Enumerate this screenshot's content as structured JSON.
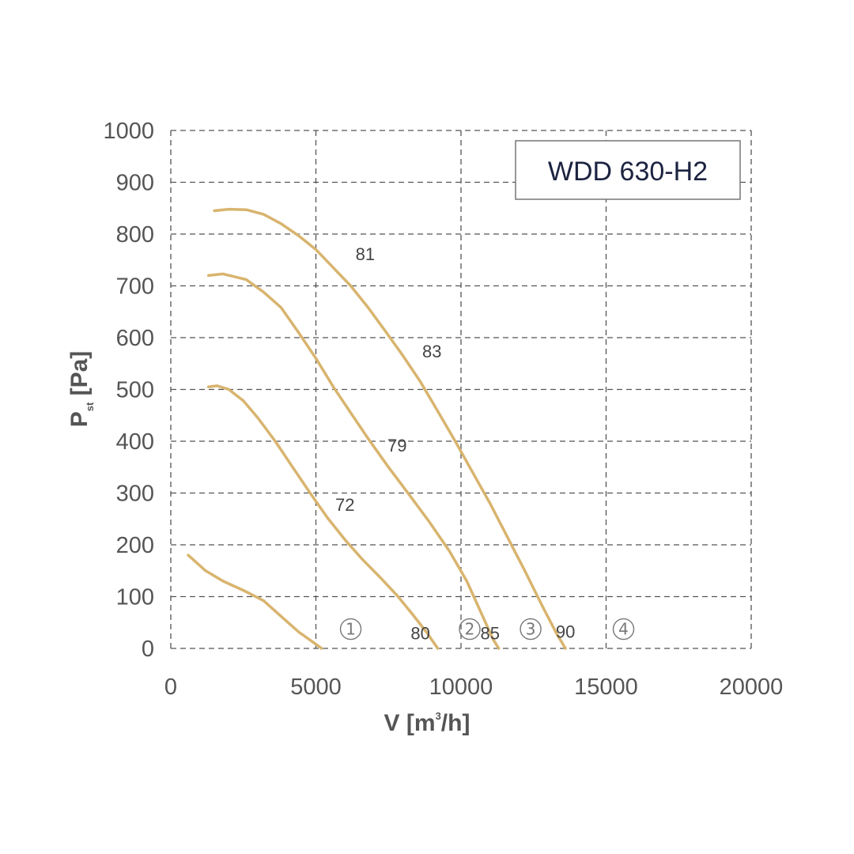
{
  "chart_data": {
    "type": "line",
    "title": "WDD 630-H2",
    "xlabel": "V [m",
    "xlabel_sup": "3",
    "xlabel_suffix": "/h]",
    "ylabel": "P",
    "ylabel_sub": "st",
    "ylabel_suffix": " [Pa]",
    "xlim": [
      0,
      20000
    ],
    "ylim": [
      0,
      1000
    ],
    "xticks": [
      "0",
      "5000",
      "10000",
      "15000",
      "20000"
    ],
    "yticks": [
      "0",
      "100",
      "200",
      "300",
      "400",
      "500",
      "600",
      "700",
      "800",
      "900",
      "1000"
    ],
    "grid": true,
    "series": [
      {
        "name": "1",
        "points": [
          [
            600,
            180
          ],
          [
            1200,
            150
          ],
          [
            1800,
            130
          ],
          [
            2500,
            112
          ],
          [
            3200,
            92
          ],
          [
            3800,
            62
          ],
          [
            4400,
            32
          ],
          [
            4900,
            12
          ],
          [
            5200,
            0
          ]
        ]
      },
      {
        "name": "2",
        "points": [
          [
            1300,
            505
          ],
          [
            1600,
            507
          ],
          [
            2000,
            500
          ],
          [
            2500,
            478
          ],
          [
            3000,
            445
          ],
          [
            3600,
            400
          ],
          [
            4200,
            350
          ],
          [
            4800,
            300
          ],
          [
            5400,
            252
          ],
          [
            6000,
            210
          ],
          [
            6600,
            172
          ],
          [
            7200,
            138
          ],
          [
            7800,
            102
          ],
          [
            8300,
            68
          ],
          [
            8800,
            32
          ],
          [
            9200,
            0
          ]
        ]
      },
      {
        "name": "3",
        "points": [
          [
            1300,
            720
          ],
          [
            1800,
            723
          ],
          [
            2600,
            712
          ],
          [
            3200,
            688
          ],
          [
            3800,
            658
          ],
          [
            4400,
            610
          ],
          [
            5000,
            560
          ],
          [
            5600,
            505
          ],
          [
            6200,
            455
          ],
          [
            6800,
            405
          ],
          [
            7500,
            350
          ],
          [
            8200,
            298
          ],
          [
            8900,
            245
          ],
          [
            9600,
            188
          ],
          [
            10200,
            130
          ],
          [
            10700,
            68
          ],
          [
            11100,
            18
          ],
          [
            11300,
            0
          ]
        ]
      },
      {
        "name": "4",
        "points": [
          [
            1500,
            845
          ],
          [
            2000,
            848
          ],
          [
            2600,
            847
          ],
          [
            3200,
            838
          ],
          [
            3800,
            820
          ],
          [
            4400,
            797
          ],
          [
            5000,
            770
          ],
          [
            5600,
            735
          ],
          [
            6200,
            700
          ],
          [
            6800,
            658
          ],
          [
            7400,
            612
          ],
          [
            8000,
            565
          ],
          [
            8600,
            515
          ],
          [
            9200,
            458
          ],
          [
            9800,
            400
          ],
          [
            10400,
            340
          ],
          [
            11000,
            280
          ],
          [
            11600,
            215
          ],
          [
            12200,
            150
          ],
          [
            12800,
            82
          ],
          [
            13300,
            28
          ],
          [
            13600,
            0
          ]
        ]
      }
    ],
    "curve_labels": [
      {
        "text": "81",
        "x": 6700,
        "y": 762
      },
      {
        "text": "83",
        "x": 9000,
        "y": 574
      },
      {
        "text": "79",
        "x": 7800,
        "y": 392
      },
      {
        "text": "72",
        "x": 6000,
        "y": 278
      },
      {
        "text": "80",
        "x": 8600,
        "y": 30
      },
      {
        "text": "85",
        "x": 11000,
        "y": 30
      },
      {
        "text": "90",
        "x": 13600,
        "y": 33
      }
    ],
    "markers": [
      {
        "text": "1",
        "x": 6200,
        "y": 22
      },
      {
        "text": "2",
        "x": 10300,
        "y": 22
      },
      {
        "text": "3",
        "x": 12400,
        "y": 22
      },
      {
        "text": "4",
        "x": 15600,
        "y": 22
      }
    ]
  }
}
